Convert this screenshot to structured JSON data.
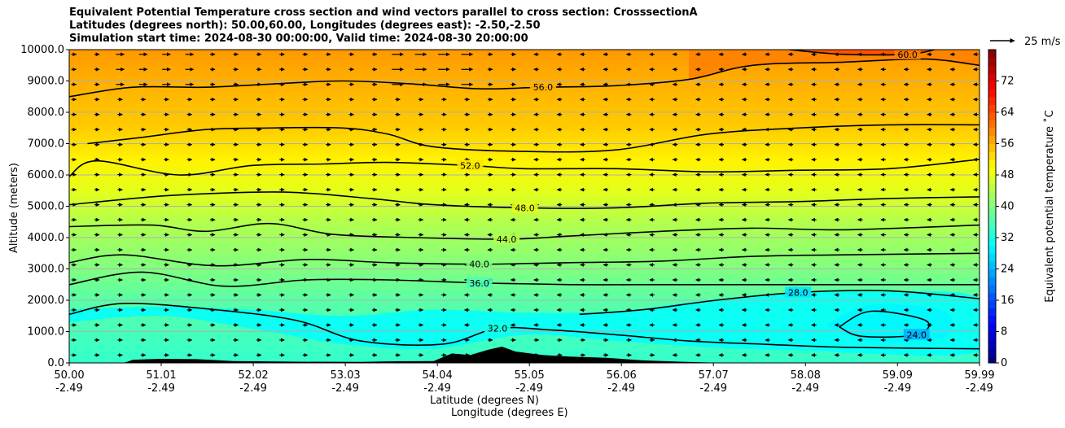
{
  "chart_data": {
    "type": "contour",
    "title_lines": [
      "Equivalent Potential Temperature cross section and wind vectors parallel to cross section: CrosssectionA",
      "Latitudes (degrees north): 50.00,60.00, Longitudes (degrees east): -2.50,-2.50",
      "Simulation start time: 2024-08-30 00:00:00, Valid time: 2024-08-30 20:00:00"
    ],
    "xlabel_lat": "Latitude (degrees N)",
    "xlabel_lon": "Longitude (degrees E)",
    "ylabel": "Altitude (meters)",
    "xlim": [
      50.0,
      59.99
    ],
    "ylim": [
      0,
      10000
    ],
    "x_ticks": [
      {
        "lat": "50.00",
        "lon": "-2.49",
        "value": 50.0
      },
      {
        "lat": "51.01",
        "lon": "-2.49",
        "value": 51.01
      },
      {
        "lat": "52.02",
        "lon": "-2.49",
        "value": 52.02
      },
      {
        "lat": "53.03",
        "lon": "-2.49",
        "value": 53.03
      },
      {
        "lat": "54.04",
        "lon": "-2.49",
        "value": 54.04
      },
      {
        "lat": "55.05",
        "lon": "-2.49",
        "value": 55.05
      },
      {
        "lat": "56.06",
        "lon": "-2.49",
        "value": 56.06
      },
      {
        "lat": "57.07",
        "lon": "-2.49",
        "value": 57.07
      },
      {
        "lat": "58.08",
        "lon": "-2.49",
        "value": 58.08
      },
      {
        "lat": "59.09",
        "lon": "-2.49",
        "value": 59.09
      },
      {
        "lat": "59.99",
        "lon": "-2.49",
        "value": 59.99
      }
    ],
    "y_ticks": [
      "0.0",
      "1000.0",
      "2000.0",
      "3000.0",
      "4000.0",
      "5000.0",
      "6000.0",
      "7000.0",
      "8000.0",
      "9000.0",
      "10000.0"
    ],
    "grid": true,
    "colorbar": {
      "label": "Equivalent potential temperature $^\\circ$C",
      "range": [
        0,
        80
      ],
      "ticks": [
        "0",
        "8",
        "16",
        "24",
        "32",
        "40",
        "48",
        "56",
        "64",
        "72"
      ],
      "colormap": "jet"
    },
    "wind_key": "25 m/s",
    "contours": [
      {
        "level": 28.0,
        "label": "28.0",
        "points": [
          [
            55.6,
            1550
          ],
          [
            56.3,
            1700
          ],
          [
            57.1,
            2000
          ],
          [
            58.0,
            2250
          ],
          [
            59.0,
            2300
          ],
          [
            59.99,
            2050
          ]
        ]
      },
      {
        "level": 24.0,
        "label": "24.0",
        "points": [
          [
            58.45,
            1150
          ],
          [
            58.8,
            1650
          ],
          [
            59.4,
            1350
          ],
          [
            59.3,
            900
          ],
          [
            58.7,
            850
          ],
          [
            58.45,
            1150
          ]
        ]
      },
      {
        "level": 32.0,
        "label": "32.0",
        "points": [
          [
            50.0,
            1550
          ],
          [
            50.6,
            1900
          ],
          [
            51.6,
            1700
          ],
          [
            52.5,
            1350
          ],
          [
            53.2,
            700
          ],
          [
            54.1,
            600
          ],
          [
            54.7,
            1100
          ],
          [
            55.3,
            1050
          ],
          [
            56.0,
            900
          ],
          [
            56.8,
            700
          ],
          [
            57.6,
            600
          ],
          [
            58.5,
            500
          ],
          [
            59.99,
            450
          ]
        ]
      },
      {
        "level": 36.0,
        "label": "36.0",
        "points": [
          [
            50.0,
            2500
          ],
          [
            50.8,
            2900
          ],
          [
            51.7,
            2450
          ],
          [
            52.6,
            2650
          ],
          [
            53.5,
            2650
          ],
          [
            54.5,
            2550
          ],
          [
            55.5,
            2500
          ],
          [
            56.5,
            2500
          ],
          [
            57.5,
            2500
          ],
          [
            58.5,
            2500
          ],
          [
            59.99,
            2500
          ]
        ]
      },
      {
        "level": 40.0,
        "label": "40.0",
        "points": [
          [
            50.0,
            3200
          ],
          [
            50.6,
            3450
          ],
          [
            51.6,
            3100
          ],
          [
            52.6,
            3300
          ],
          [
            53.5,
            3200
          ],
          [
            54.5,
            3150
          ],
          [
            55.5,
            3200
          ],
          [
            56.5,
            3250
          ],
          [
            57.5,
            3400
          ],
          [
            58.5,
            3450
          ],
          [
            59.99,
            3500
          ]
        ]
      },
      {
        "level": 44.0,
        "label": "44.0",
        "points": [
          [
            50.0,
            4350
          ],
          [
            50.9,
            4400
          ],
          [
            51.5,
            4200
          ],
          [
            52.2,
            4450
          ],
          [
            52.9,
            4100
          ],
          [
            53.8,
            4000
          ],
          [
            54.8,
            3950
          ],
          [
            55.5,
            4050
          ],
          [
            56.5,
            4200
          ],
          [
            57.5,
            4300
          ],
          [
            58.5,
            4250
          ],
          [
            59.99,
            4400
          ]
        ]
      },
      {
        "level": 48.0,
        "label": "48.0",
        "points": [
          [
            50.0,
            5050
          ],
          [
            50.9,
            5300
          ],
          [
            51.5,
            5400
          ],
          [
            52.4,
            5450
          ],
          [
            53.3,
            5250
          ],
          [
            54.0,
            5050
          ],
          [
            55.0,
            4950
          ],
          [
            56.0,
            4950
          ],
          [
            57.0,
            5100
          ],
          [
            58.0,
            5150
          ],
          [
            59.0,
            5250
          ],
          [
            59.99,
            5300
          ]
        ]
      },
      {
        "level": 52.0,
        "label": "52.0",
        "points": [
          [
            50.0,
            5950
          ],
          [
            50.3,
            6450
          ],
          [
            51.2,
            6000
          ],
          [
            52.0,
            6300
          ],
          [
            52.8,
            6350
          ],
          [
            53.5,
            6400
          ],
          [
            54.4,
            6300
          ],
          [
            55.0,
            6200
          ],
          [
            56.0,
            6200
          ],
          [
            57.0,
            6100
          ],
          [
            58.0,
            6150
          ],
          [
            59.0,
            6200
          ],
          [
            59.99,
            6500
          ]
        ]
      },
      {
        "level": 54.0,
        "label": "",
        "points": [
          [
            50.2,
            7000
          ],
          [
            50.8,
            7200
          ],
          [
            51.5,
            7450
          ],
          [
            52.2,
            7500
          ],
          [
            53.0,
            7500
          ],
          [
            53.5,
            7300
          ],
          [
            54.0,
            6900
          ],
          [
            55.0,
            6750
          ],
          [
            56.0,
            6800
          ],
          [
            57.0,
            7300
          ],
          [
            58.0,
            7500
          ],
          [
            59.0,
            7600
          ],
          [
            59.99,
            7600
          ]
        ]
      },
      {
        "level": 56.0,
        "label": "56.0",
        "points": [
          [
            50.0,
            8500
          ],
          [
            50.7,
            8800
          ],
          [
            51.5,
            8800
          ],
          [
            52.2,
            8900
          ],
          [
            53.0,
            9000
          ],
          [
            53.8,
            8900
          ],
          [
            54.5,
            8750
          ],
          [
            55.2,
            8800
          ],
          [
            56.0,
            8850
          ],
          [
            56.8,
            9050
          ],
          [
            57.5,
            9500
          ],
          [
            58.5,
            9600
          ],
          [
            59.4,
            9700
          ],
          [
            59.99,
            9500
          ]
        ]
      },
      {
        "level": 60.0,
        "label": "60.0",
        "points": [
          [
            57.9,
            10000
          ],
          [
            58.5,
            9850
          ],
          [
            59.2,
            9850
          ],
          [
            59.5,
            10000
          ]
        ]
      }
    ],
    "filled_bands": [
      {
        "range": [
          24,
          28
        ],
        "points": [
          [
            58.3,
            1200
          ],
          [
            58.8,
            1850
          ],
          [
            59.6,
            1650
          ],
          [
            59.6,
            800
          ],
          [
            58.8,
            700
          ],
          [
            58.3,
            1200
          ]
        ]
      },
      {
        "range": [
          28,
          32
        ],
        "points": [
          [
            50.0,
            1300
          ],
          [
            51.0,
            1500
          ],
          [
            52.0,
            1100
          ],
          [
            53.0,
            600
          ],
          [
            54.0,
            450
          ],
          [
            55.0,
            900
          ],
          [
            56.0,
            700
          ],
          [
            57.0,
            500
          ],
          [
            58.0,
            400
          ],
          [
            59.99,
            350
          ],
          [
            59.99,
            2050
          ],
          [
            59.0,
            2300
          ],
          [
            58.0,
            2250
          ],
          [
            57.0,
            2000
          ],
          [
            56.0,
            1650
          ],
          [
            55.0,
            1600
          ],
          [
            54.0,
            1700
          ],
          [
            53.0,
            1500
          ],
          [
            52.0,
            1700
          ],
          [
            51.0,
            1800
          ],
          [
            50.0,
            1700
          ]
        ]
      }
    ],
    "terrain_heights": [
      [
        50.0,
        0
      ],
      [
        50.6,
        0
      ],
      [
        50.7,
        100
      ],
      [
        51.0,
        130
      ],
      [
        51.4,
        120
      ],
      [
        51.8,
        60
      ],
      [
        52.5,
        40
      ],
      [
        53.2,
        30
      ],
      [
        53.5,
        50
      ],
      [
        54.0,
        60
      ],
      [
        54.2,
        300
      ],
      [
        54.4,
        250
      ],
      [
        54.6,
        420
      ],
      [
        54.75,
        520
      ],
      [
        54.9,
        360
      ],
      [
        55.2,
        250
      ],
      [
        55.5,
        200
      ],
      [
        55.9,
        160
      ],
      [
        56.3,
        80
      ],
      [
        56.7,
        40
      ],
      [
        57.2,
        0
      ],
      [
        59.99,
        0
      ]
    ]
  }
}
